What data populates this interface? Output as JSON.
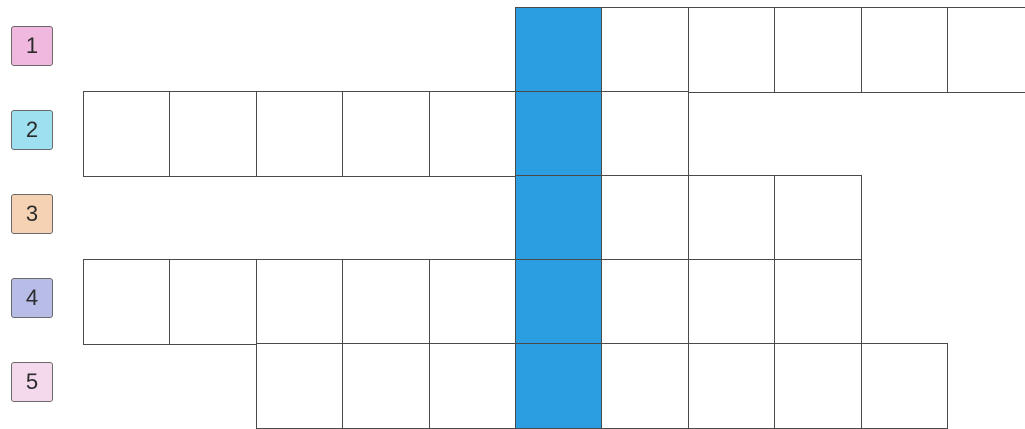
{
  "puzzle": {
    "highlight_color": "#2a9ee0",
    "highlight_column": 6,
    "rows": [
      {
        "label": "1",
        "badge_color": "#f0b7df",
        "start_col": 6,
        "end_col": 11
      },
      {
        "label": "2",
        "badge_color": "#9ee0ef",
        "start_col": 1,
        "end_col": 7
      },
      {
        "label": "3",
        "badge_color": "#f6d2b4",
        "start_col": 6,
        "end_col": 9
      },
      {
        "label": "4",
        "badge_color": "#b8bde8",
        "start_col": 1,
        "end_col": 9
      },
      {
        "label": "5",
        "badge_color": "#f4d8ec",
        "start_col": 3,
        "end_col": 10
      }
    ]
  }
}
